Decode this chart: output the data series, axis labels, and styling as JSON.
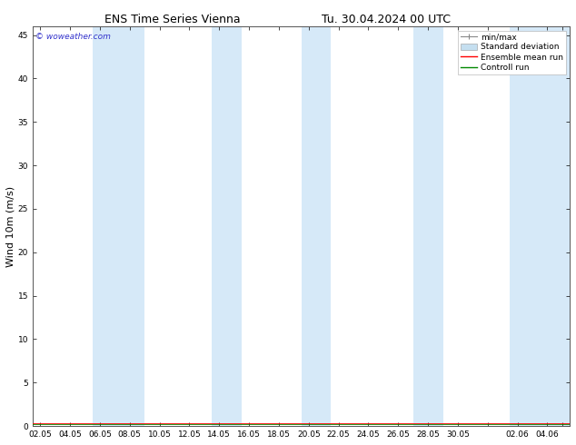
{
  "title_left": "ENS Time Series Vienna",
  "title_right": "Tu. 30.04.2024 00 UTC",
  "ylabel": "Wind 10m (m/s)",
  "ylim": [
    0,
    46
  ],
  "yticks": [
    0,
    5,
    10,
    15,
    20,
    25,
    30,
    35,
    40,
    45
  ],
  "x_tick_positions": [
    0,
    2,
    4,
    6,
    8,
    10,
    12,
    14,
    16,
    18,
    20,
    22,
    24,
    26,
    28,
    30,
    32,
    34,
    35
  ],
  "x_tick_labels": [
    "02.05",
    "04.05",
    "06.05",
    "08.05",
    "10.05",
    "12.05",
    "14.05",
    "16.05",
    "18.05",
    "20.05",
    "22.05",
    "24.05",
    "26.05",
    "28.05",
    "30.05",
    "",
    "02.06",
    "04.06",
    ""
  ],
  "xlim": [
    -0.5,
    35.5
  ],
  "shade_bands": [
    [
      3.5,
      5.5
    ],
    [
      5.5,
      7.0
    ],
    [
      11.5,
      13.5
    ],
    [
      17.5,
      19.5
    ],
    [
      25.0,
      27.0
    ],
    [
      31.5,
      35.5
    ]
  ],
  "shade_color": "#d6e9f8",
  "background_color": "#ffffff",
  "legend_minmax_color": "#888888",
  "legend_stddev_color": "#c5dff0",
  "legend_ensemble_color": "#ff0000",
  "legend_control_color": "#008800",
  "watermark": "© woweather.com",
  "watermark_color": "#3333cc",
  "title_fontsize": 9,
  "tick_fontsize": 6.5,
  "ylabel_fontsize": 8,
  "legend_fontsize": 6.5
}
